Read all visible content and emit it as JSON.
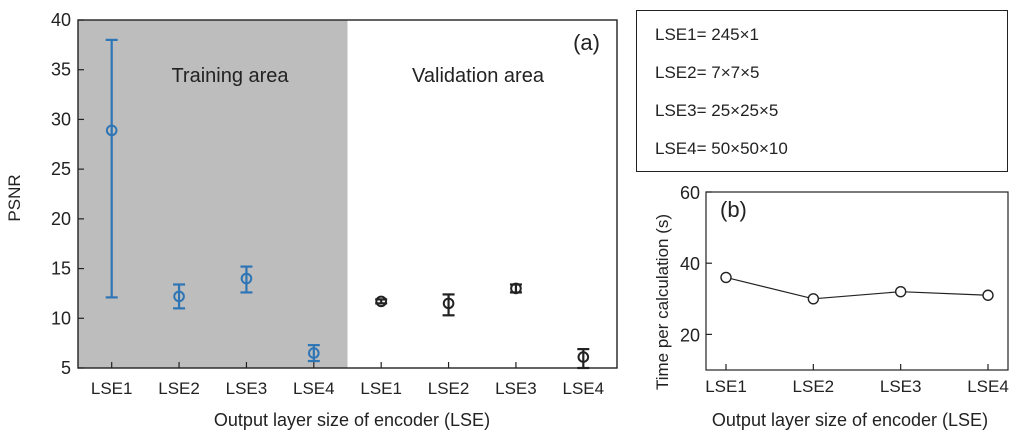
{
  "chart_data": [
    {
      "id": "a",
      "type": "scatter",
      "panel_label": "(a)",
      "xlabel": "Output layer size of encoder (LSE)",
      "ylabel": "PSNR",
      "ylim": [
        5,
        40
      ],
      "yticks": [
        5,
        10,
        15,
        20,
        25,
        30,
        35,
        40
      ],
      "categories": [
        "LSE1",
        "LSE2",
        "LSE3",
        "LSE4",
        "LSE1",
        "LSE2",
        "LSE3",
        "LSE4"
      ],
      "regions": [
        {
          "label": "Training area",
          "shaded": true,
          "color": "#bdbdbd"
        },
        {
          "label": "Validation area",
          "shaded": false,
          "color": "#ffffff"
        }
      ],
      "series": [
        {
          "color": "#2e75b6",
          "x_index": [
            0,
            1,
            2,
            3
          ],
          "values": [
            28.9,
            12.2,
            14.0,
            6.5
          ],
          "err_low": [
            12.1,
            11.0,
            12.6,
            5.7
          ],
          "err_high": [
            38.0,
            13.4,
            15.2,
            7.3
          ]
        },
        {
          "color": "#222222",
          "x_index": [
            4,
            5,
            6,
            7
          ],
          "values": [
            11.7,
            11.5,
            13.0,
            6.1
          ],
          "err_low": [
            11.5,
            10.3,
            12.6,
            5.0
          ],
          "err_high": [
            11.9,
            12.4,
            13.4,
            6.9
          ]
        }
      ],
      "grid": false
    },
    {
      "id": "b",
      "type": "line",
      "panel_label": "(b)",
      "xlabel": "Output layer size of encoder (LSE)",
      "ylabel": "Time  per calculation (s)",
      "categories": [
        "LSE1",
        "LSE2",
        "LSE3",
        "LSE4"
      ],
      "values": [
        36,
        30,
        32,
        31
      ],
      "ylim": [
        10,
        60
      ],
      "yticks": [
        20,
        40,
        60
      ],
      "grid": false
    }
  ],
  "legend": {
    "lines": [
      "LSE1= 245×1",
      "LSE2= 7×7×5",
      "LSE3= 25×25×5",
      "LSE4= 50×50×10"
    ]
  }
}
